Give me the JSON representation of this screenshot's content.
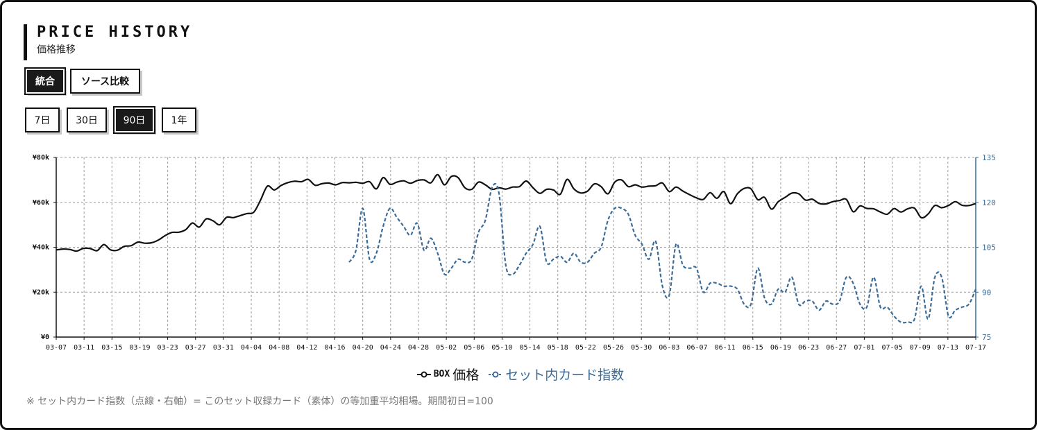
{
  "header": {
    "title": "PRICE HISTORY",
    "subtitle": "価格推移"
  },
  "view_tabs": [
    {
      "label": "統合",
      "active": true
    },
    {
      "label": "ソース比較",
      "active": false
    }
  ],
  "range_tabs": [
    {
      "label": "7日",
      "active": false
    },
    {
      "label": "30日",
      "active": false
    },
    {
      "label": "90日",
      "active": true
    },
    {
      "label": "1年",
      "active": false
    }
  ],
  "legend": {
    "box_label_prefix": "BOX",
    "box_label_suffix": "価格",
    "index_label": "セット内カード指数"
  },
  "note": "※ セット内カード指数（点線・右軸）= このセット収録カード（素体）の等加重平均相場。期間初日=100",
  "colors": {
    "box": "#111111",
    "index": "#3b6c99",
    "grid": "#9a9a9a"
  },
  "chart_data": {
    "type": "line",
    "x_ticks": [
      "03-07",
      "03-11",
      "03-15",
      "03-19",
      "03-23",
      "03-27",
      "03-31",
      "04-04",
      "04-08",
      "04-12",
      "04-16",
      "04-20",
      "04-24",
      "04-28",
      "05-02",
      "05-06",
      "05-10",
      "05-14",
      "05-18",
      "05-22",
      "05-26",
      "05-30",
      "06-03",
      "06-07",
      "06-11",
      "06-15",
      "06-19",
      "06-23",
      "06-27",
      "07-01",
      "07-05",
      "07-09",
      "07-13",
      "07-17"
    ],
    "y_left_ticks": [
      "¥0",
      "¥20k",
      "¥40k",
      "¥60k",
      "¥80k"
    ],
    "y_left_lim": [
      0,
      80000
    ],
    "y_right_ticks": [
      "75",
      "90",
      "105",
      "120",
      "135"
    ],
    "y_right_lim": [
      75,
      135
    ],
    "x_range_days": [
      0,
      132
    ],
    "series": [
      {
        "name": "BOX価格",
        "axis": "left",
        "style": "solid",
        "points": [
          [
            0,
            38800
          ],
          [
            1,
            39200
          ],
          [
            2,
            39000
          ],
          [
            3,
            38300
          ],
          [
            4,
            39500
          ],
          [
            5,
            39400
          ],
          [
            6,
            38500
          ],
          [
            7,
            41200
          ],
          [
            8,
            38800
          ],
          [
            9,
            38700
          ],
          [
            10,
            40400
          ],
          [
            11,
            40700
          ],
          [
            12,
            42300
          ],
          [
            13,
            41800
          ],
          [
            14,
            42000
          ],
          [
            15,
            43200
          ],
          [
            16,
            45200
          ],
          [
            17,
            46600
          ],
          [
            18,
            46700
          ],
          [
            19,
            47800
          ],
          [
            20,
            50800
          ],
          [
            21,
            49000
          ],
          [
            22,
            52600
          ],
          [
            23,
            51800
          ],
          [
            24,
            50000
          ],
          [
            25,
            53300
          ],
          [
            26,
            53200
          ],
          [
            27,
            54100
          ],
          [
            28,
            55000
          ],
          [
            29,
            55600
          ],
          [
            30,
            61000
          ],
          [
            31,
            67200
          ],
          [
            32,
            65500
          ],
          [
            33,
            67500
          ],
          [
            34,
            68800
          ],
          [
            35,
            69400
          ],
          [
            36,
            69200
          ],
          [
            37,
            70200
          ],
          [
            38,
            67600
          ],
          [
            39,
            68300
          ],
          [
            40,
            68600
          ],
          [
            41,
            67800
          ],
          [
            42,
            68800
          ],
          [
            43,
            68700
          ],
          [
            44,
            68900
          ],
          [
            45,
            68500
          ],
          [
            46,
            69200
          ],
          [
            47,
            66000
          ],
          [
            48,
            71000
          ],
          [
            49,
            68000
          ],
          [
            50,
            69000
          ],
          [
            51,
            69600
          ],
          [
            52,
            68500
          ],
          [
            53,
            69700
          ],
          [
            54,
            70000
          ],
          [
            55,
            68700
          ],
          [
            56,
            72300
          ],
          [
            57,
            67800
          ],
          [
            58,
            71500
          ],
          [
            59,
            71000
          ],
          [
            60,
            66500
          ],
          [
            61,
            65800
          ],
          [
            62,
            69000
          ],
          [
            63,
            67800
          ],
          [
            64,
            65800
          ],
          [
            65,
            66500
          ],
          [
            66,
            65900
          ],
          [
            67,
            66800
          ],
          [
            68,
            67000
          ],
          [
            69,
            69500
          ],
          [
            70,
            66500
          ],
          [
            71,
            64000
          ],
          [
            72,
            65800
          ],
          [
            73,
            65500
          ],
          [
            74,
            63600
          ],
          [
            75,
            70200
          ],
          [
            76,
            66000
          ],
          [
            77,
            64200
          ],
          [
            78,
            65000
          ],
          [
            79,
            68200
          ],
          [
            80,
            67000
          ],
          [
            81,
            63800
          ],
          [
            82,
            69000
          ],
          [
            83,
            70000
          ],
          [
            84,
            67000
          ],
          [
            85,
            67800
          ],
          [
            86,
            66800
          ],
          [
            87,
            67200
          ],
          [
            88,
            67400
          ],
          [
            89,
            68600
          ],
          [
            90,
            64800
          ],
          [
            91,
            66800
          ],
          [
            92,
            65000
          ],
          [
            93,
            63400
          ],
          [
            94,
            62000
          ],
          [
            95,
            61300
          ],
          [
            96,
            64300
          ],
          [
            97,
            61800
          ],
          [
            98,
            64800
          ],
          [
            99,
            59400
          ],
          [
            100,
            63800
          ],
          [
            101,
            66200
          ],
          [
            102,
            66000
          ],
          [
            103,
            61200
          ],
          [
            104,
            62200
          ],
          [
            105,
            57000
          ],
          [
            106,
            60300
          ],
          [
            107,
            62200
          ],
          [
            108,
            64100
          ],
          [
            109,
            63800
          ],
          [
            110,
            61000
          ],
          [
            111,
            61400
          ],
          [
            112,
            59500
          ],
          [
            113,
            59300
          ],
          [
            114,
            60300
          ],
          [
            115,
            60800
          ],
          [
            116,
            61300
          ],
          [
            117,
            55800
          ],
          [
            118,
            58400
          ],
          [
            119,
            57300
          ],
          [
            120,
            57100
          ],
          [
            121,
            55700
          ],
          [
            122,
            54700
          ],
          [
            123,
            57200
          ],
          [
            124,
            55700
          ],
          [
            125,
            57100
          ],
          [
            126,
            57400
          ],
          [
            127,
            53200
          ],
          [
            128,
            54800
          ],
          [
            129,
            58600
          ],
          [
            130,
            57600
          ],
          [
            131,
            58600
          ],
          [
            132,
            60300
          ],
          [
            133,
            58700
          ],
          [
            134,
            58600
          ],
          [
            135,
            59500
          ]
        ]
      },
      {
        "name": "セット内カード指数",
        "axis": "right",
        "style": "dashed",
        "points": [
          [
            43,
            100
          ],
          [
            44,
            104
          ],
          [
            45,
            118
          ],
          [
            46,
            101
          ],
          [
            47,
            103
          ],
          [
            48,
            112
          ],
          [
            49,
            118
          ],
          [
            50,
            115
          ],
          [
            51,
            112
          ],
          [
            52,
            109
          ],
          [
            53,
            113
          ],
          [
            54,
            104
          ],
          [
            55,
            108
          ],
          [
            56,
            103
          ],
          [
            57,
            96
          ],
          [
            58,
            98
          ],
          [
            59,
            101
          ],
          [
            60,
            100
          ],
          [
            61,
            101
          ],
          [
            62,
            110
          ],
          [
            63,
            114
          ],
          [
            64,
            125
          ],
          [
            65,
            123
          ],
          [
            66,
            99
          ],
          [
            67,
            96
          ],
          [
            68,
            99
          ],
          [
            69,
            103
          ],
          [
            70,
            106
          ],
          [
            71,
            112
          ],
          [
            72,
            100
          ],
          [
            73,
            101
          ],
          [
            74,
            102
          ],
          [
            75,
            100
          ],
          [
            76,
            103
          ],
          [
            77,
            100
          ],
          [
            78,
            100
          ],
          [
            79,
            103
          ],
          [
            80,
            105
          ],
          [
            81,
            114
          ],
          [
            82,
            118
          ],
          [
            83,
            118
          ],
          [
            84,
            116
          ],
          [
            85,
            109
          ],
          [
            86,
            106
          ],
          [
            87,
            101
          ],
          [
            88,
            107
          ],
          [
            89,
            92
          ],
          [
            90,
            89
          ],
          [
            91,
            106
          ],
          [
            92,
            99
          ],
          [
            93,
            98
          ],
          [
            94,
            98
          ],
          [
            95,
            90
          ],
          [
            96,
            93
          ],
          [
            97,
            93
          ],
          [
            98,
            92
          ],
          [
            99,
            92
          ],
          [
            100,
            91
          ],
          [
            101,
            86
          ],
          [
            102,
            86
          ],
          [
            103,
            98
          ],
          [
            104,
            88
          ],
          [
            105,
            86
          ],
          [
            106,
            91
          ],
          [
            107,
            90
          ],
          [
            108,
            95
          ],
          [
            109,
            86
          ],
          [
            110,
            87
          ],
          [
            111,
            87
          ],
          [
            112,
            84
          ],
          [
            113,
            87
          ],
          [
            114,
            86
          ],
          [
            115,
            87
          ],
          [
            116,
            95
          ],
          [
            117,
            93
          ],
          [
            118,
            86
          ],
          [
            119,
            85
          ],
          [
            120,
            95
          ],
          [
            121,
            85
          ],
          [
            122,
            85
          ],
          [
            123,
            82
          ],
          [
            124,
            80
          ],
          [
            125,
            80
          ],
          [
            126,
            81
          ],
          [
            127,
            92
          ],
          [
            128,
            81
          ],
          [
            129,
            95
          ],
          [
            130,
            95
          ],
          [
            131,
            82
          ],
          [
            132,
            84
          ],
          [
            133,
            85
          ],
          [
            134,
            86
          ],
          [
            135,
            91
          ]
        ]
      }
    ]
  }
}
